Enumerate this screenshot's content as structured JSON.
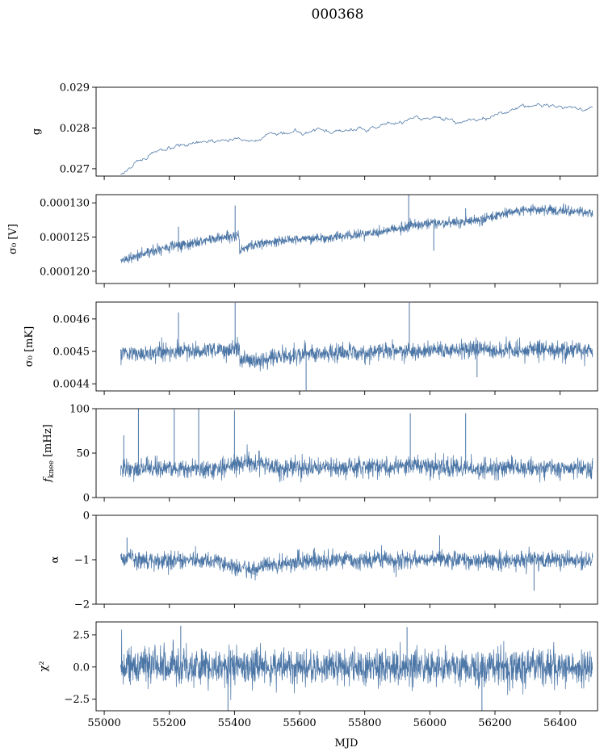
{
  "figure": {
    "title": "000368",
    "xlabel": "MJD",
    "series_color": "#4c76a6"
  },
  "chart_data": [
    {
      "type": "line",
      "ylabel": "g",
      "xlim": [
        54975,
        56515
      ],
      "ylim": [
        0.02682,
        0.029
      ],
      "yticks": [
        0.027,
        0.028,
        0.029
      ],
      "ytick_labels": [
        "0.027",
        "0.028",
        "0.029"
      ],
      "x": [
        55050,
        55075,
        55100,
        55150,
        55200,
        55250,
        55300,
        55350,
        55400,
        55450,
        55500,
        55550,
        55600,
        55650,
        55700,
        55750,
        55800,
        55850,
        55900,
        55950,
        56000,
        56050,
        56100,
        56150,
        56200,
        56250,
        56300,
        56350,
        56400,
        56450,
        56500
      ],
      "y": [
        0.02685,
        0.02702,
        0.02718,
        0.02737,
        0.02745,
        0.02755,
        0.02762,
        0.02768,
        0.02772,
        0.02772,
        0.02778,
        0.02785,
        0.02792,
        0.02796,
        0.02792,
        0.0279,
        0.02798,
        0.02805,
        0.02812,
        0.02822,
        0.02826,
        0.02824,
        0.02818,
        0.0282,
        0.02828,
        0.02845,
        0.02855,
        0.02858,
        0.02852,
        0.0285,
        0.02848
      ]
    },
    {
      "type": "line",
      "ylabel": "σ₀ [V]",
      "xlim": [
        54975,
        56515
      ],
      "ylim": [
        0.0001182,
        0.0001312
      ],
      "yticks": [
        0.00012,
        0.000125,
        0.00013
      ],
      "ytick_labels": [
        "0.000120",
        "0.000125",
        "0.000130"
      ],
      "x": [
        55050,
        55100,
        55150,
        55200,
        55250,
        55300,
        55350,
        55400,
        55415,
        55416,
        55450,
        55500,
        55550,
        55600,
        55650,
        55700,
        55750,
        55800,
        55850,
        55900,
        55950,
        56000,
        56050,
        56100,
        56150,
        56200,
        56250,
        56300,
        56350,
        56400,
        56450,
        56500
      ],
      "y": [
        0.0001215,
        0.0001222,
        0.000123,
        0.0001236,
        0.000124,
        0.0001243,
        0.0001248,
        0.0001252,
        0.0001254,
        0.000123,
        0.0001238,
        0.0001242,
        0.0001245,
        0.0001248,
        0.0001248,
        0.000125,
        0.0001252,
        0.0001254,
        0.0001258,
        0.0001262,
        0.0001268,
        0.000127,
        0.000127,
        0.0001272,
        0.0001275,
        0.0001282,
        0.0001287,
        0.000129,
        0.000129,
        0.0001288,
        0.0001287,
        0.0001285
      ],
      "noise": 6e-07,
      "spikes": [
        [
          55228,
          0.0001265
        ],
        [
          55402,
          0.0001296
        ],
        [
          55935,
          0.0001312
        ],
        [
          56110,
          0.0001292
        ],
        [
          56012,
          0.000123
        ]
      ]
    },
    {
      "type": "line",
      "ylabel": "σ₀ [mK]",
      "xlim": [
        54975,
        56515
      ],
      "ylim": [
        0.004378,
        0.004652
      ],
      "yticks": [
        0.0044,
        0.0045,
        0.0046
      ],
      "ytick_labels": [
        "0.0044",
        "0.0045",
        "0.0046"
      ],
      "x": [
        55050,
        55100,
        55150,
        55200,
        55250,
        55300,
        55350,
        55400,
        55415,
        55416,
        55450,
        55500,
        55550,
        55600,
        55650,
        55700,
        55750,
        55800,
        55850,
        55900,
        55950,
        56000,
        56050,
        56100,
        56150,
        56200,
        56250,
        56300,
        56350,
        56400,
        56450,
        56500
      ],
      "y": [
        0.004495,
        0.004495,
        0.004495,
        0.004495,
        0.0045,
        0.0045,
        0.004505,
        0.004505,
        0.00451,
        0.00448,
        0.00447,
        0.004475,
        0.004485,
        0.00449,
        0.004495,
        0.004495,
        0.004495,
        0.004495,
        0.0045,
        0.0045,
        0.0045,
        0.0045,
        0.004505,
        0.004505,
        0.00451,
        0.0045,
        0.004505,
        0.004505,
        0.004505,
        0.004505,
        0.004505,
        0.004505
      ],
      "noise": 2.2e-05,
      "spikes": [
        [
          55228,
          0.00462
        ],
        [
          55402,
          0.00465
        ],
        [
          55937,
          0.00465
        ],
        [
          55620,
          0.00438
        ],
        [
          56145,
          0.00442
        ]
      ]
    },
    {
      "type": "line",
      "ylabel": "f_knee [mHz]",
      "xlim": [
        54975,
        56515
      ],
      "ylim": [
        0,
        100
      ],
      "yticks": [
        0,
        50,
        100
      ],
      "ytick_labels": [
        "0",
        "50",
        "100"
      ],
      "x": [
        55050,
        55150,
        55250,
        55350,
        55400,
        55450,
        55500,
        55600,
        55700,
        55800,
        55900,
        55950,
        56000,
        56100,
        56200,
        56300,
        56400,
        56500
      ],
      "y": [
        33,
        32,
        32,
        33,
        36,
        40,
        35,
        33,
        33,
        34,
        35,
        37,
        34,
        33,
        33,
        33,
        33,
        33
      ],
      "noise": 9,
      "spikes": [
        [
          55060,
          70
        ],
        [
          55105,
          100
        ],
        [
          55215,
          100
        ],
        [
          55290,
          100
        ],
        [
          55400,
          98
        ],
        [
          55940,
          95
        ],
        [
          56110,
          95
        ]
      ]
    },
    {
      "type": "line",
      "ylabel": "α",
      "xlim": [
        54975,
        56515
      ],
      "ylim": [
        -2,
        0
      ],
      "yticks": [
        -2,
        -1,
        0
      ],
      "ytick_labels": [
        "−2",
        "−1",
        "0"
      ],
      "x": [
        55050,
        55150,
        55250,
        55350,
        55420,
        55450,
        55500,
        55600,
        55700,
        55800,
        55900,
        55950,
        56000,
        56100,
        56200,
        56300,
        56400,
        56500
      ],
      "y": [
        -1.0,
        -1.02,
        -1.02,
        -1.05,
        -1.2,
        -1.22,
        -1.12,
        -1.05,
        -1.0,
        -1.0,
        -1.02,
        -1.0,
        -0.98,
        -1.0,
        -1.02,
        -1.0,
        -1.02,
        -1.0
      ],
      "noise": 0.17,
      "spikes": [
        [
          55070,
          -0.5
        ],
        [
          56030,
          -0.45
        ],
        [
          56320,
          -1.7
        ]
      ]
    },
    {
      "type": "line",
      "ylabel": "χ²",
      "xlim": [
        54975,
        56515
      ],
      "ylim": [
        -3.4,
        3.5
      ],
      "yticks": [
        -2.5,
        0,
        2.5
      ],
      "ytick_labels": [
        "−2.5",
        "0.0",
        "2.5"
      ],
      "xticks": [
        55000,
        55200,
        55400,
        55600,
        55800,
        56000,
        56200,
        56400
      ],
      "xtick_labels": [
        "55000",
        "55200",
        "55400",
        "55600",
        "55800",
        "56000",
        "56200",
        "56400"
      ],
      "x": [
        55050,
        56500
      ],
      "y": [
        0,
        0
      ],
      "noise": 1.2,
      "spikes": [
        [
          55235,
          3.2
        ],
        [
          55930,
          3.1
        ],
        [
          55380,
          -3.4
        ],
        [
          56160,
          -3.4
        ]
      ]
    }
  ]
}
